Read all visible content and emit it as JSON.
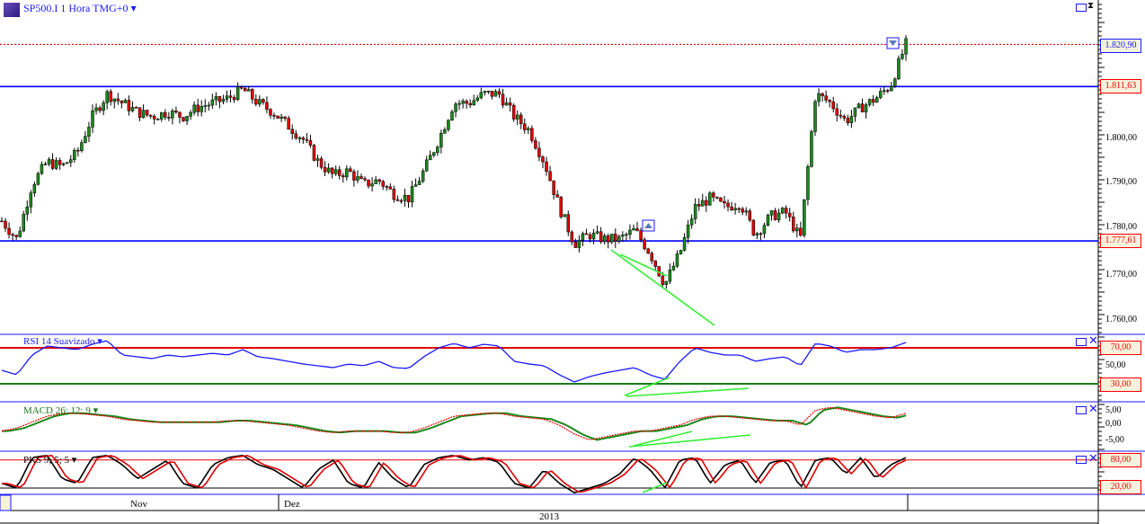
{
  "header": {
    "title": "SP500.I 1 Hora TMG+0",
    "dropdown_icon": "caret-down-icon",
    "logo": "CFD i"
  },
  "price_axis": {
    "ticks": [
      "1.800,00",
      "1.790,00",
      "1.780,00",
      "1.770,00",
      "1.760,00"
    ],
    "current_label": "1.820,90",
    "resistance_label": "1.811,63",
    "support_label": "1.777,61"
  },
  "rsi": {
    "title": "RSI 14 Suavizado",
    "labels": [
      "70,00",
      "50,00",
      "30,00"
    ]
  },
  "macd": {
    "title": "MACD 26; 12; 9",
    "labels": [
      "5,00",
      "0,00",
      "-5,00"
    ]
  },
  "stoch": {
    "title": "PKS 9; 5; 5",
    "labels": [
      "80,00",
      "20,00"
    ]
  },
  "time_axis": {
    "months": [
      "Nov",
      "Dez"
    ],
    "year": "2013"
  },
  "colors": {
    "accent": "#0000ff",
    "up": "#1a8a1a",
    "down": "#e00000",
    "trend": "#33ee33"
  },
  "chart_data": [
    {
      "type": "candlestick",
      "title": "SP500.I 1 Hora TMG+0",
      "ylim": [
        1758,
        1826
      ],
      "close_path": [
        1782,
        1778,
        1790,
        1795,
        1794,
        1797,
        1805,
        1810,
        1808,
        1806,
        1805,
        1806,
        1805,
        1807,
        1808,
        1809,
        1811,
        1808,
        1806,
        1803,
        1800,
        1795,
        1792,
        1793,
        1790,
        1791,
        1788,
        1787,
        1793,
        1800,
        1808,
        1808,
        1810,
        1810,
        1805,
        1802,
        1795,
        1785,
        1777,
        1779,
        1778,
        1778,
        1780,
        1775,
        1768,
        1775,
        1785,
        1787,
        1785,
        1786,
        1779,
        1783,
        1784,
        1778,
        1810,
        1808,
        1804,
        1807,
        1809,
        1812,
        1821
      ],
      "horizontal_lines": [
        {
          "value": 1811.63,
          "color": "#0000ff"
        },
        {
          "value": 1777.61,
          "color": "#0000ff"
        },
        {
          "value": 1820.9,
          "color": "#e00000",
          "style": "dotted"
        }
      ]
    },
    {
      "type": "line",
      "title": "RSI 14 Suavizado",
      "ylim": [
        0,
        100
      ],
      "levels": [
        70,
        30
      ],
      "values": [
        45,
        40,
        62,
        72,
        70,
        68,
        74,
        78,
        62,
        60,
        58,
        62,
        60,
        62,
        64,
        62,
        68,
        60,
        58,
        55,
        52,
        50,
        48,
        52,
        50,
        55,
        48,
        47,
        60,
        70,
        75,
        70,
        74,
        72,
        55,
        52,
        50,
        40,
        32,
        38,
        42,
        45,
        48,
        40,
        35,
        55,
        70,
        65,
        62,
        62,
        55,
        58,
        60,
        50,
        75,
        72,
        65,
        68,
        68,
        70,
        76
      ]
    },
    {
      "type": "line",
      "title": "MACD 26; 12; 9",
      "ylim": [
        -8,
        7
      ],
      "values": [
        -2,
        -1,
        1,
        3,
        4,
        4,
        3.5,
        3,
        2,
        1.5,
        1,
        1,
        1,
        1,
        1,
        1.5,
        1.5,
        1,
        0.5,
        0,
        -1,
        -2,
        -2.5,
        -2,
        -2,
        -2,
        -2.5,
        -2.5,
        -1,
        1,
        3,
        3.5,
        4,
        4,
        3,
        2.5,
        2,
        0,
        -3,
        -5,
        -4,
        -3,
        -2,
        -2,
        -1,
        0,
        2,
        3,
        3,
        2.5,
        2,
        1.5,
        1.5,
        0,
        5,
        6,
        5,
        4,
        3,
        2.5,
        4
      ]
    },
    {
      "type": "line",
      "title": "PKS 9; 5; 5",
      "ylim": [
        0,
        100
      ],
      "levels": [
        80,
        20
      ],
      "values": [
        30,
        20,
        85,
        90,
        40,
        30,
        85,
        90,
        70,
        40,
        60,
        80,
        30,
        20,
        70,
        85,
        90,
        70,
        60,
        40,
        20,
        60,
        80,
        30,
        20,
        75,
        40,
        20,
        70,
        85,
        90,
        80,
        85,
        75,
        30,
        20,
        60,
        30,
        10,
        20,
        30,
        50,
        85,
        60,
        20,
        80,
        85,
        30,
        70,
        80,
        30,
        75,
        80,
        20,
        80,
        85,
        50,
        85,
        40,
        70,
        85
      ]
    }
  ]
}
